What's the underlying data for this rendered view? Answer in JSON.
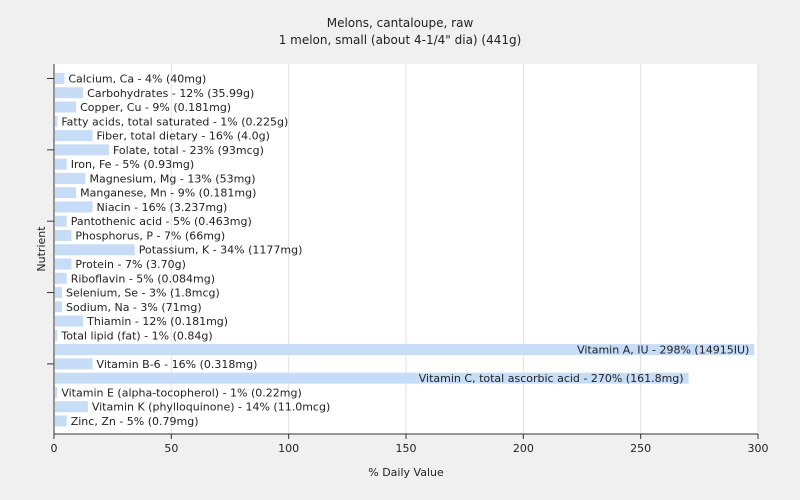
{
  "chart_data": {
    "type": "bar",
    "orientation": "horizontal",
    "title": "Melons, cantaloupe, raw",
    "subtitle": "1 melon, small (about 4-1/4\" dia) (441g)",
    "xlabel": "% Daily Value",
    "ylabel": "Nutrient",
    "xlim": [
      0,
      300
    ],
    "xticks": [
      "0",
      "50",
      "100",
      "150",
      "200",
      "250",
      "300"
    ],
    "grid": true,
    "bar_color": "#c6dcf7",
    "categories": [
      "Calcium, Ca - 4% (40mg)",
      "Carbohydrates - 12% (35.99g)",
      "Copper, Cu - 9% (0.181mg)",
      "Fatty acids, total saturated - 1% (0.225g)",
      "Fiber, total dietary - 16% (4.0g)",
      "Folate, total - 23% (93mcg)",
      "Iron, Fe - 5% (0.93mg)",
      "Magnesium, Mg - 13% (53mg)",
      "Manganese, Mn - 9% (0.181mg)",
      "Niacin - 16% (3.237mg)",
      "Pantothenic acid - 5% (0.463mg)",
      "Phosphorus, P - 7% (66mg)",
      "Potassium, K - 34% (1177mg)",
      "Protein - 7% (3.70g)",
      "Riboflavin - 5% (0.084mg)",
      "Selenium, Se - 3% (1.8mcg)",
      "Sodium, Na - 3% (71mg)",
      "Thiamin - 12% (0.181mg)",
      "Total lipid (fat) - 1% (0.84g)",
      "Vitamin A, IU - 298% (14915IU)",
      "Vitamin B-6 - 16% (0.318mg)",
      "Vitamin C, total ascorbic acid - 270% (161.8mg)",
      "Vitamin E (alpha-tocopherol) - 1% (0.22mg)",
      "Vitamin K (phylloquinone) - 14% (11.0mcg)",
      "Zinc, Zn - 5% (0.79mg)"
    ],
    "values": [
      4,
      12,
      9,
      1,
      16,
      23,
      5,
      13,
      9,
      16,
      5,
      7,
      34,
      7,
      5,
      3,
      3,
      12,
      1,
      298,
      16,
      270,
      1,
      14,
      5
    ]
  }
}
